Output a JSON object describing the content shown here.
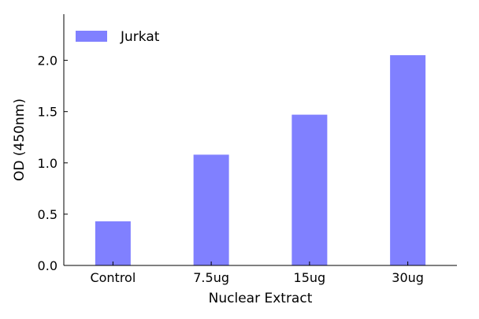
{
  "chart_data": {
    "type": "bar",
    "categories": [
      "Control",
      "7.5ug",
      "15ug",
      "30ug"
    ],
    "series": [
      {
        "name": "Jurkat",
        "values": [
          0.43,
          1.08,
          1.47,
          2.05
        ],
        "color": "#8080ff"
      }
    ],
    "title": "",
    "xlabel": "Nuclear Extract",
    "ylabel": "OD (450nm)",
    "ylim": [
      0,
      2.45
    ],
    "yticks": [
      0.0,
      0.5,
      1.0,
      1.5,
      2.0
    ],
    "ytick_labels": [
      "0.0",
      "0.5",
      "1.0",
      "1.5",
      "2.0"
    ],
    "grid": false,
    "legend": {
      "position": "top-left",
      "entries": [
        "Jurkat"
      ]
    }
  }
}
